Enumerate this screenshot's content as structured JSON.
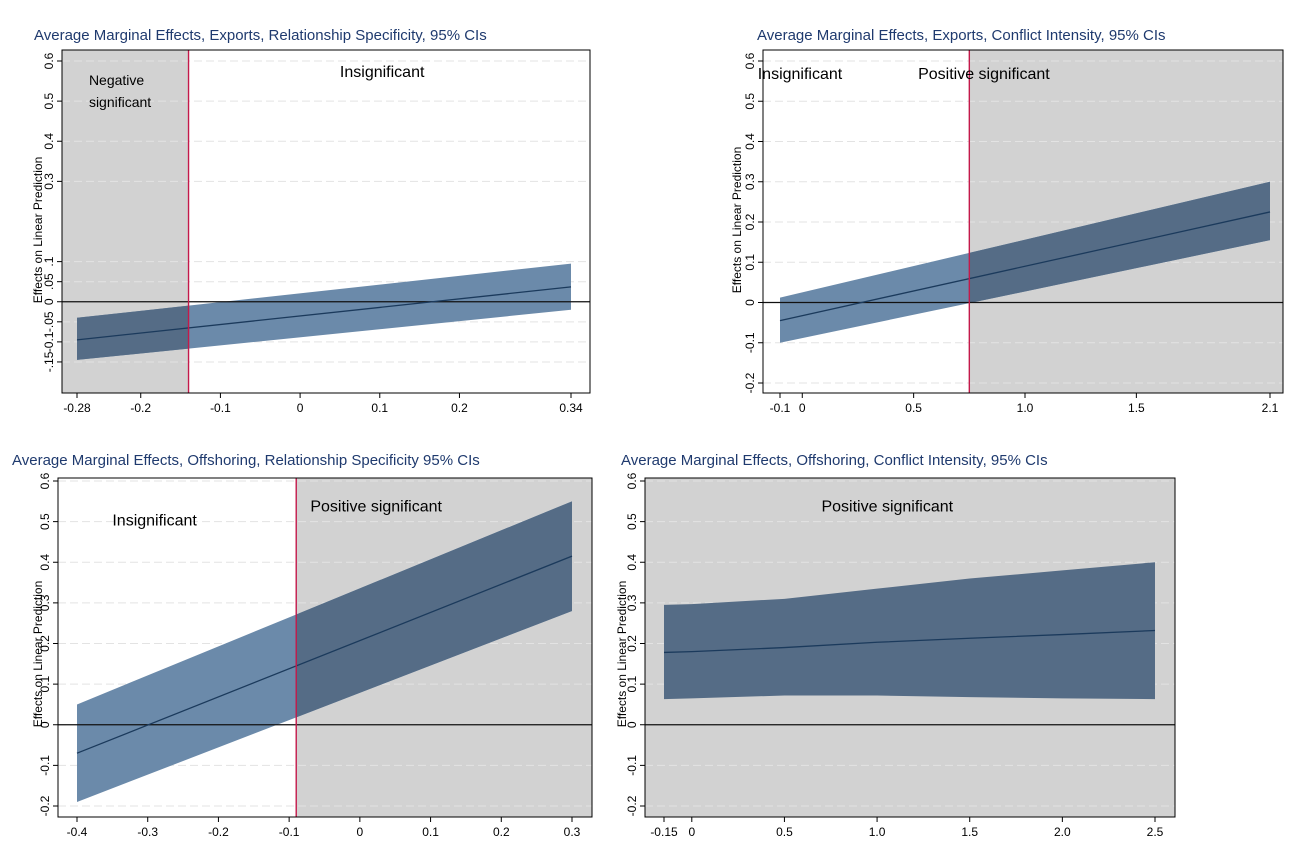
{
  "chart_data": [
    {
      "type": "area",
      "title": "Average Marginal Effects, Exports, Relationship Specificity, 95% CIs",
      "xlabel": "",
      "ylabel": "Effects on Linear Prediction",
      "xlim": [
        -0.28,
        0.34
      ],
      "ylim": [
        -0.2,
        0.6
      ],
      "x_ticks": [
        -0.28,
        -0.2,
        -0.1,
        0,
        0.1,
        0.2,
        0.34
      ],
      "x_tick_labels": [
        "-0.28",
        "-0.2",
        "-0.1",
        "0",
        "0.1",
        "0.2",
        "0.34"
      ],
      "y_ticks": [
        -0.15,
        -0.1,
        -0.05,
        0,
        0.05,
        0.1,
        0.3,
        0.4,
        0.5,
        0.6
      ],
      "y_tick_labels": [
        "-.15",
        "-0.1",
        "-.05",
        "0",
        ".05",
        ".1",
        "0.3",
        "0.4",
        "0.5",
        "0.6"
      ],
      "grid": true,
      "zero_line": true,
      "threshold_x": -0.14,
      "shaded_side": "left",
      "x": [
        -0.28,
        0.34
      ],
      "estimate": [
        -0.095,
        0.037
      ],
      "ci_lower": [
        -0.145,
        -0.02
      ],
      "ci_upper": [
        -0.04,
        0.095
      ],
      "annotations": [
        {
          "text": "Negative\nsignificant",
          "x": -0.265,
          "y": 0.54
        },
        {
          "text": "Insignificant",
          "x": 0.05,
          "y": 0.56
        }
      ]
    },
    {
      "type": "area",
      "title": "Average Marginal Effects, Exports, Conflict Intensity, 95% CIs",
      "xlabel": "",
      "ylabel": "Effects on Linear Prediction",
      "xlim": [
        -0.1,
        2.1
      ],
      "ylim": [
        -0.2,
        0.6
      ],
      "x_ticks": [
        -0.1,
        0,
        0.5,
        1.0,
        1.5,
        2.1
      ],
      "x_tick_labels": [
        "-0.1",
        "0",
        "0.5",
        "1.0",
        "1.5",
        "2.1"
      ],
      "y_ticks": [
        -0.2,
        -0.1,
        0,
        0.1,
        0.2,
        0.3,
        0.4,
        0.5,
        0.6
      ],
      "y_tick_labels": [
        "-0.2",
        "-0.1",
        "0",
        "0.1",
        "0.2",
        "0.3",
        "0.4",
        "0.5",
        "0.6"
      ],
      "grid": true,
      "zero_line": true,
      "threshold_x": 0.75,
      "shaded_side": "right",
      "x": [
        -0.1,
        2.1
      ],
      "estimate": [
        -0.045,
        0.225
      ],
      "ci_lower": [
        -0.1,
        0.155
      ],
      "ci_upper": [
        0.012,
        0.3
      ],
      "annotations": [
        {
          "text": "Insignificant",
          "x": -0.2,
          "y": 0.555
        },
        {
          "text": "Positive significant",
          "x": 0.52,
          "y": 0.555
        }
      ]
    },
    {
      "type": "area",
      "title": "Average Marginal Effects, Offshoring, Relationship Specificity 95% CIs",
      "xlabel": "",
      "ylabel": "Effects on Linear Prediction",
      "xlim": [
        -0.4,
        0.3
      ],
      "ylim": [
        -0.2,
        0.6
      ],
      "x_ticks": [
        -0.4,
        -0.3,
        -0.2,
        -0.1,
        0,
        0.1,
        0.2,
        0.3
      ],
      "x_tick_labels": [
        "-0.4",
        "-0.3",
        "-0.2",
        "-0.1",
        "0",
        "0.1",
        "0.2",
        "0.3"
      ],
      "y_ticks": [
        -0.2,
        -0.1,
        0,
        0.1,
        0.2,
        0.3,
        0.4,
        0.5,
        0.6
      ],
      "y_tick_labels": [
        "-0.2",
        "-0.1",
        "0",
        "0.1",
        "0.2",
        "0.3",
        "0.4",
        "0.5",
        "0.6"
      ],
      "grid": true,
      "zero_line": true,
      "threshold_x": -0.09,
      "shaded_side": "right",
      "x": [
        -0.4,
        0.3
      ],
      "estimate": [
        -0.07,
        0.415
      ],
      "ci_lower": [
        -0.19,
        0.28
      ],
      "ci_upper": [
        0.05,
        0.55
      ],
      "annotations": [
        {
          "text": "Insignificant",
          "x": -0.35,
          "y": 0.49
        },
        {
          "text": "Positive significant",
          "x": -0.07,
          "y": 0.525
        }
      ]
    },
    {
      "type": "area",
      "title": "Average Marginal Effects, Offshoring, Conflict Intensity, 95% CIs",
      "xlabel": "",
      "ylabel": "Effects on Linear Prediction",
      "xlim": [
        -0.15,
        2.5
      ],
      "ylim": [
        -0.2,
        0.6
      ],
      "x_ticks": [
        -0.15,
        0,
        0.5,
        1.0,
        1.5,
        2.0,
        2.5
      ],
      "x_tick_labels": [
        "-0.15",
        "0",
        "0.5",
        "1.0",
        "1.5",
        "2.0",
        "2.5"
      ],
      "y_ticks": [
        -0.2,
        -0.1,
        0,
        0.1,
        0.2,
        0.3,
        0.4,
        0.5,
        0.6
      ],
      "y_tick_labels": [
        "-0.2",
        "-0.1",
        "0",
        "0.1",
        "0.2",
        "0.3",
        "0.4",
        "0.5",
        "0.6"
      ],
      "grid": true,
      "zero_line": true,
      "threshold_x": null,
      "shaded_side": "all",
      "x": [
        -0.15,
        0.0,
        0.5,
        1.0,
        1.5,
        2.0,
        2.5
      ],
      "estimate": [
        0.178,
        0.18,
        0.19,
        0.203,
        0.213,
        0.222,
        0.232
      ],
      "ci_lower": [
        0.063,
        0.065,
        0.072,
        0.072,
        0.068,
        0.065,
        0.063
      ],
      "ci_upper": [
        0.295,
        0.297,
        0.31,
        0.335,
        0.36,
        0.38,
        0.4
      ],
      "annotations": [
        {
          "text": "Positive significant",
          "x": 0.7,
          "y": 0.525
        }
      ]
    }
  ],
  "colors": {
    "band_dark": "#556c86",
    "band_light": "#6b8aaa",
    "estimate_line": "#1b3a5c",
    "shade": "#d2d2d2",
    "threshold": "#c4194a",
    "title": "#1f3a6e",
    "grid": "#e3e3e3"
  }
}
